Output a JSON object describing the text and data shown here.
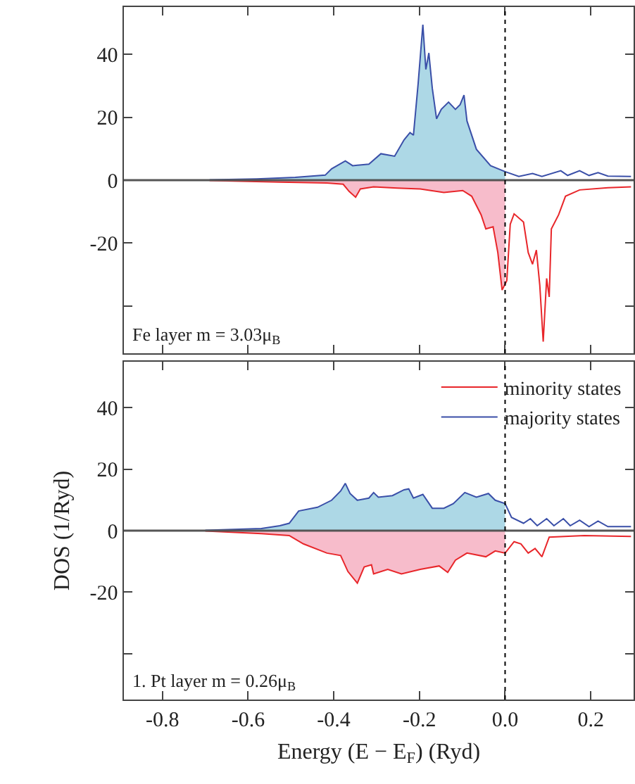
{
  "chart_data": [
    {
      "type": "line",
      "tick_labels": "y",
      "xlim": [
        -0.89,
        0.3
      ],
      "xticks": [
        -0.8,
        -0.6,
        -0.4,
        -0.2,
        0,
        0.2
      ],
      "ylim": [
        -55,
        55
      ],
      "yticks": [
        {
          "value": -40,
          "label": null
        },
        -20,
        0,
        20,
        40
      ],
      "grid": false,
      "legend": false,
      "annotations": [
        "Fe layer m = 3.03μ$_{B}$"
      ],
      "ref_lines": [
        {
          "axis": "y",
          "value": 0,
          "color": "#555555",
          "line_style": "solid"
        },
        {
          "axis": "x",
          "value": 0,
          "color": "#000000",
          "line_style": "dotted"
        }
      ],
      "series": [
        {
          "type": "area",
          "color": "#add8e6",
          "x": [
            -0.69,
            -0.58,
            -0.49,
            -0.42,
            -0.405,
            -0.373,
            -0.356,
            -0.318,
            -0.29,
            -0.258,
            -0.236,
            -0.222,
            -0.214,
            -0.203,
            -0.192,
            -0.185,
            -0.178,
            -0.17,
            -0.16,
            -0.149,
            -0.132,
            -0.116,
            -0.105,
            -0.096,
            -0.089,
            -0.067,
            -0.034,
            0
          ],
          "values": [
            0.1,
            0.4,
            0.9,
            1.6,
            3.6,
            6.1,
            4.6,
            5.1,
            8.4,
            7.6,
            12.8,
            15.1,
            14.3,
            30.7,
            49.4,
            35.2,
            40.4,
            29.2,
            19.5,
            22.5,
            24.8,
            22.5,
            24.0,
            27.0,
            18.8,
            9.8,
            4.6,
            2.7
          ]
        },
        {
          "type": "area",
          "color": "#f7bccb",
          "x": [
            -0.69,
            -0.526,
            -0.416,
            -0.378,
            -0.364,
            -0.349,
            -0.338,
            -0.307,
            -0.252,
            -0.198,
            -0.143,
            -0.099,
            -0.078,
            -0.056,
            -0.045,
            -0.028,
            -0.017,
            -0.007,
            0
          ],
          "values": [
            -0.1,
            -0.6,
            -0.9,
            -1.3,
            -3.6,
            -5.4,
            -2.8,
            -2.1,
            -2.5,
            -2.8,
            -3.9,
            -3.3,
            -5.1,
            -11,
            -15.5,
            -14.8,
            -23,
            -34.9,
            -33
          ]
        },
        {
          "color": "#e8262a",
          "x": [
            -0.69,
            -0.526,
            -0.416,
            -0.378,
            -0.364,
            -0.349,
            -0.338,
            -0.307,
            -0.252,
            -0.198,
            -0.143,
            -0.099,
            -0.078,
            -0.056,
            -0.045,
            -0.028,
            -0.017,
            -0.007,
            0.004,
            0.012,
            0.021,
            0.043,
            0.054,
            0.064,
            0.073,
            0.081,
            0.089,
            0.097,
            0.103,
            0.108,
            0.125,
            0.141,
            0.174,
            0.24,
            0.294
          ],
          "values": [
            -0.1,
            -0.6,
            -0.9,
            -1.3,
            -3.6,
            -5.4,
            -2.8,
            -2.1,
            -2.5,
            -2.8,
            -3.9,
            -3.3,
            -5.1,
            -11,
            -15.5,
            -14.8,
            -23,
            -34.9,
            -31.9,
            -14.0,
            -10.7,
            -13.3,
            -23,
            -26.7,
            -22.2,
            -33.4,
            -51.3,
            -31.2,
            -37.1,
            -15.5,
            -11,
            -5.1,
            -3.1,
            -2.4,
            -2.1
          ]
        },
        {
          "color": "#3a4fa8",
          "x": [
            -0.69,
            -0.58,
            -0.49,
            -0.42,
            -0.405,
            -0.373,
            -0.356,
            -0.318,
            -0.29,
            -0.258,
            -0.236,
            -0.222,
            -0.214,
            -0.203,
            -0.192,
            -0.185,
            -0.178,
            -0.17,
            -0.16,
            -0.149,
            -0.132,
            -0.116,
            -0.105,
            -0.096,
            -0.089,
            -0.067,
            -0.034,
            0,
            0.032,
            0.064,
            0.086,
            0.13,
            0.146,
            0.174,
            0.196,
            0.217,
            0.24,
            0.294
          ],
          "values": [
            0.1,
            0.4,
            0.9,
            1.6,
            3.6,
            6.1,
            4.6,
            5.1,
            8.4,
            7.6,
            12.8,
            15.1,
            14.3,
            30.7,
            49.4,
            35.2,
            40.4,
            29.2,
            19.5,
            22.5,
            24.8,
            22.5,
            24.0,
            27.0,
            18.8,
            9.8,
            4.6,
            2.7,
            1.2,
            2.1,
            1.2,
            3.0,
            1.5,
            3.0,
            1.5,
            2.4,
            1.3,
            1.2
          ]
        }
      ]
    },
    {
      "type": "line",
      "xlabel": "Energy (E − E$_{F}$) (Ryd)",
      "ylabel": "DOS (1/Ryd)",
      "xlim": [
        -0.89,
        0.3
      ],
      "xticks": [
        -0.8,
        -0.6,
        -0.4,
        -0.2,
        {
          "value": 0,
          "label": "0.0"
        },
        0.2
      ],
      "ylim": [
        -55,
        55
      ],
      "yticks": [
        {
          "value": -40,
          "label": null
        },
        -20,
        0,
        20,
        40
      ],
      "grid": false,
      "legend": "top right",
      "annotations": [
        "1. Pt layer m = 0.26μ$_{B}$"
      ],
      "ref_lines": [
        {
          "axis": "y",
          "value": 0,
          "color": "#555555",
          "line_style": "solid"
        },
        {
          "axis": "x",
          "value": 0,
          "color": "#000000",
          "line_style": "dotted"
        }
      ],
      "series": [
        {
          "type": "area",
          "color": "#add8e6",
          "x": [
            -0.7,
            -0.569,
            -0.526,
            -0.504,
            -0.482,
            -0.438,
            -0.405,
            -0.384,
            -0.373,
            -0.362,
            -0.345,
            -0.318,
            -0.307,
            -0.296,
            -0.263,
            -0.236,
            -0.225,
            -0.214,
            -0.192,
            -0.17,
            -0.143,
            -0.121,
            -0.094,
            -0.067,
            -0.039,
            -0.023,
            0
          ],
          "values": [
            0.1,
            0.7,
            1.6,
            2.4,
            6.4,
            7.6,
            9.9,
            12.9,
            15.4,
            12.1,
            9.9,
            10.6,
            12.4,
            10.9,
            11.4,
            13.3,
            13.6,
            10.6,
            11.8,
            7.3,
            7.3,
            8.8,
            12.4,
            10.9,
            12.1,
            9.9,
            8.8
          ]
        },
        {
          "type": "area",
          "color": "#f7bccb",
          "x": [
            -0.7,
            -0.569,
            -0.504,
            -0.471,
            -0.416,
            -0.384,
            -0.367,
            -0.345,
            -0.329,
            -0.312,
            -0.307,
            -0.274,
            -0.242,
            -0.198,
            -0.154,
            -0.134,
            -0.116,
            -0.089,
            -0.045,
            -0.023,
            0
          ],
          "values": [
            -0.1,
            -1.0,
            -1.6,
            -4.3,
            -7.3,
            -8.1,
            -13.3,
            -17.1,
            -11.8,
            -11.1,
            -14.1,
            -12.6,
            -14.1,
            -12.6,
            -11.5,
            -13.6,
            -9.6,
            -7.3,
            -8.5,
            -6.6,
            -7.3
          ]
        },
        {
          "name": "minority states",
          "color": "#e8262a",
          "x": [
            -0.7,
            -0.569,
            -0.504,
            -0.471,
            -0.416,
            -0.384,
            -0.367,
            -0.345,
            -0.329,
            -0.312,
            -0.307,
            -0.274,
            -0.242,
            -0.198,
            -0.154,
            -0.134,
            -0.116,
            -0.089,
            -0.045,
            -0.023,
            0,
            0.021,
            0.037,
            0.054,
            0.07,
            0.086,
            0.103,
            0.185,
            0.294
          ],
          "values": [
            -0.1,
            -1.0,
            -1.6,
            -4.3,
            -7.3,
            -8.1,
            -13.3,
            -17.1,
            -11.8,
            -11.1,
            -14.1,
            -12.6,
            -14.1,
            -12.6,
            -11.5,
            -13.6,
            -9.6,
            -7.3,
            -8.5,
            -6.6,
            -7.3,
            -3.6,
            -4.3,
            -7.3,
            -5.8,
            -8.5,
            -2.1,
            -1.6,
            -1.9
          ]
        },
        {
          "name": "majority states",
          "color": "#3a4fa8",
          "x": [
            -0.7,
            -0.569,
            -0.526,
            -0.504,
            -0.482,
            -0.438,
            -0.405,
            -0.384,
            -0.373,
            -0.362,
            -0.345,
            -0.318,
            -0.307,
            -0.296,
            -0.263,
            -0.236,
            -0.225,
            -0.214,
            -0.192,
            -0.17,
            -0.143,
            -0.121,
            -0.094,
            -0.067,
            -0.039,
            -0.023,
            0,
            0.015,
            0.043,
            0.059,
            0.075,
            0.097,
            0.114,
            0.136,
            0.152,
            0.174,
            0.196,
            0.217,
            0.24,
            0.294
          ],
          "values": [
            0.1,
            0.7,
            1.6,
            2.4,
            6.4,
            7.6,
            9.9,
            12.9,
            15.4,
            12.1,
            9.9,
            10.6,
            12.4,
            10.9,
            11.4,
            13.3,
            13.6,
            10.6,
            11.8,
            7.3,
            7.3,
            8.8,
            12.4,
            10.9,
            12.1,
            9.9,
            8.8,
            4.3,
            2.4,
            3.9,
            1.6,
            3.9,
            1.6,
            3.9,
            1.6,
            3.4,
            1.3,
            3.1,
            1.3,
            1.3
          ]
        }
      ]
    }
  ]
}
